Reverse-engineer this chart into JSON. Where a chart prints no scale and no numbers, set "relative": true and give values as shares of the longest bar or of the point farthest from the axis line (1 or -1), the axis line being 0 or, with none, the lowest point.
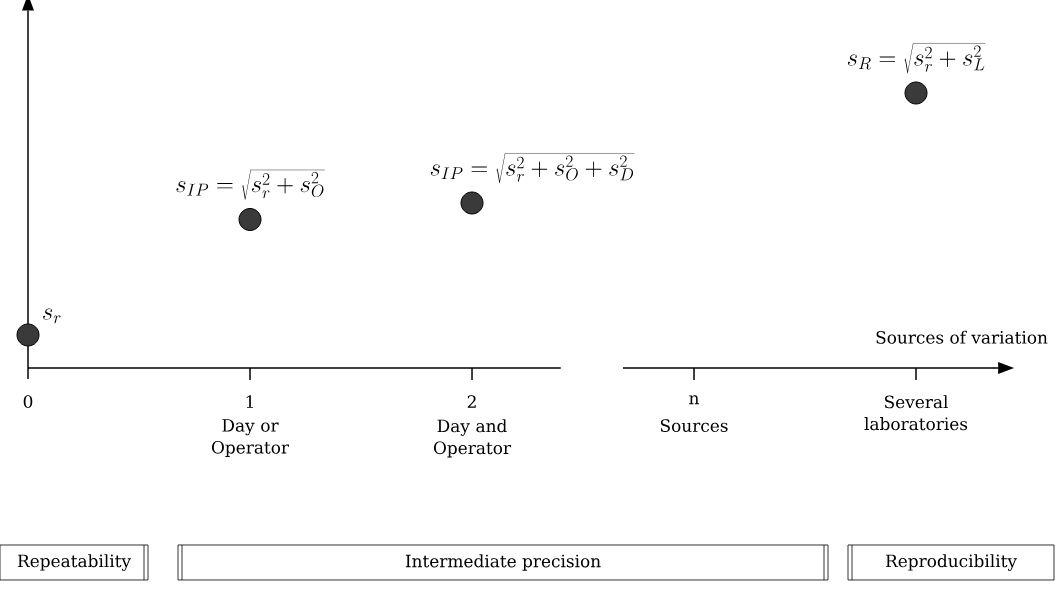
{
  "chart_data": {
    "type": "scatter",
    "relative": true,
    "marker": "circle",
    "color": "#3a3a3a",
    "xlabel": "Sources of variation",
    "categories": [
      "0",
      "1",
      "2",
      "n",
      "Several laboratories"
    ],
    "values": [
      0.12,
      0.54,
      0.6,
      null,
      1.0
    ],
    "annotations": [
      {
        "text": "s_r",
        "x": "0",
        "y": 0.12
      },
      {
        "text": "s_{IP} = \\sqrt{s_r^2 + s_O^2}",
        "x": "1",
        "y": 0.54
      },
      {
        "text": "s_{IP} = \\sqrt{s_r^2 + s_O^2 + s_D^2}",
        "x": "2",
        "y": 0.6
      },
      {
        "text": "s_R = \\sqrt{s_r^2 + s_L^2}",
        "x": "Several laboratories",
        "y": 1.0
      },
      "Day or Operator",
      "Day and Operator",
      "Sources",
      "Repeatability",
      "Intermediate precision",
      "Reproducibility"
    ]
  }
}
